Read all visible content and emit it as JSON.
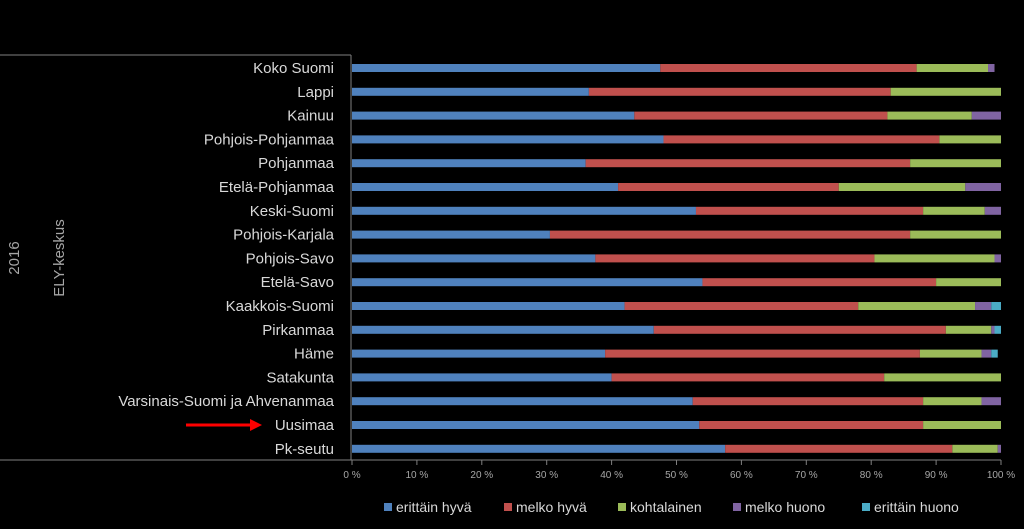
{
  "chart_data": {
    "type": "bar",
    "orientation": "horizontal",
    "stacked": "percent",
    "group_labels": {
      "year": "2016",
      "dimension": "ELY-keskus"
    },
    "categories": [
      "Koko Suomi",
      "Lappi",
      "Kainuu",
      "Pohjois-Pohjanmaa",
      "Pohjanmaa",
      "Etelä-Pohjanmaa",
      "Keski-Suomi",
      "Pohjois-Karjala",
      "Pohjois-Savo",
      "Etelä-Savo",
      "Kaakkois-Suomi",
      "Pirkanmaa",
      "Häme",
      "Satakunta",
      "Varsinais-Suomi ja Ahvenanmaa",
      "Uusimaa",
      "Pk-seutu"
    ],
    "highlighted_category": "Uusimaa",
    "series": [
      {
        "name": "erittäin hyvä",
        "color": "#4f81bd",
        "values": [
          47.5,
          36.5,
          43.5,
          48,
          36,
          41,
          53,
          30.5,
          37.5,
          54,
          42,
          46.5,
          39,
          40,
          52.5,
          53.5,
          57.5
        ]
      },
      {
        "name": "melko hyvä",
        "color": "#c0504d",
        "values": [
          39.5,
          46.5,
          39,
          42.5,
          50,
          34,
          35,
          55.5,
          43,
          36,
          36,
          45,
          48.5,
          42,
          35.5,
          34.5,
          35
        ]
      },
      {
        "name": "kohtalainen",
        "color": "#9bbb59",
        "values": [
          11,
          17,
          13,
          9.5,
          14,
          19.5,
          9.5,
          14,
          18.5,
          10,
          18,
          7,
          9.5,
          18,
          9,
          12,
          7
        ]
      },
      {
        "name": "melko huono",
        "color": "#8064a2",
        "values": [
          1,
          0,
          4.5,
          0,
          0,
          5.5,
          2.5,
          0,
          1,
          0,
          2.5,
          0.5,
          1.5,
          0,
          3,
          0,
          0.5
        ]
      },
      {
        "name": "erittäin huono",
        "color": "#4bacc6",
        "values": [
          0,
          0,
          0,
          0,
          0,
          0,
          0,
          0,
          0,
          0,
          1.5,
          1,
          1,
          0,
          0,
          0,
          0
        ]
      }
    ],
    "x_ticks": [
      "0 %",
      "10 %",
      "20 %",
      "30 %",
      "40 %",
      "50 %",
      "60 %",
      "70 %",
      "80 %",
      "90 %",
      "100 %"
    ],
    "xlim": [
      0,
      100
    ],
    "grid": false,
    "legend_position": "bottom"
  }
}
